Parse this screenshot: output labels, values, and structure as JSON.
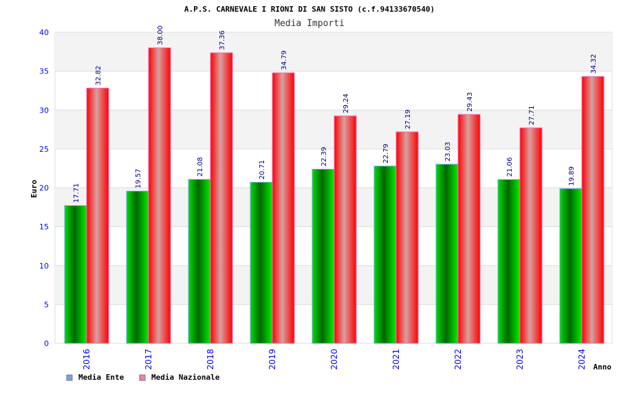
{
  "chart_data": {
    "type": "bar",
    "title": "A.P.S. CARNEVALE I RIONI DI SAN SISTO (c.f.94133670540)",
    "subtitle": "Media Importi",
    "xlabel": "Anno",
    "ylabel": "Euro",
    "ylim": [
      0,
      40
    ],
    "yticks": [
      0,
      5,
      10,
      15,
      20,
      25,
      30,
      35,
      40
    ],
    "grid": true,
    "legend_position": "bottom-left",
    "categories": [
      "2016",
      "2017",
      "2018",
      "2019",
      "2020",
      "2021",
      "2022",
      "2023",
      "2024"
    ],
    "series": [
      {
        "name": "Media Ente",
        "color": "#00aa00",
        "legend_color": "#6aa8e8",
        "values": [
          17.71,
          19.57,
          21.08,
          20.71,
          22.39,
          22.79,
          23.03,
          21.06,
          19.89
        ],
        "labels": [
          "17.71",
          "19.57",
          "21.08",
          "20.71",
          "22.39",
          "22.79",
          "23.03",
          "21.06",
          "19.89"
        ]
      },
      {
        "name": "Media Nazionale",
        "color": "#ff0000",
        "legend_color": "#f080b0",
        "values": [
          32.82,
          38.0,
          37.36,
          34.79,
          29.24,
          27.19,
          29.43,
          27.71,
          34.32
        ],
        "labels": [
          "32.82",
          "38.00",
          "37.36",
          "34.79",
          "29.24",
          "27.19",
          "29.43",
          "27.71",
          "34.32"
        ]
      }
    ]
  }
}
